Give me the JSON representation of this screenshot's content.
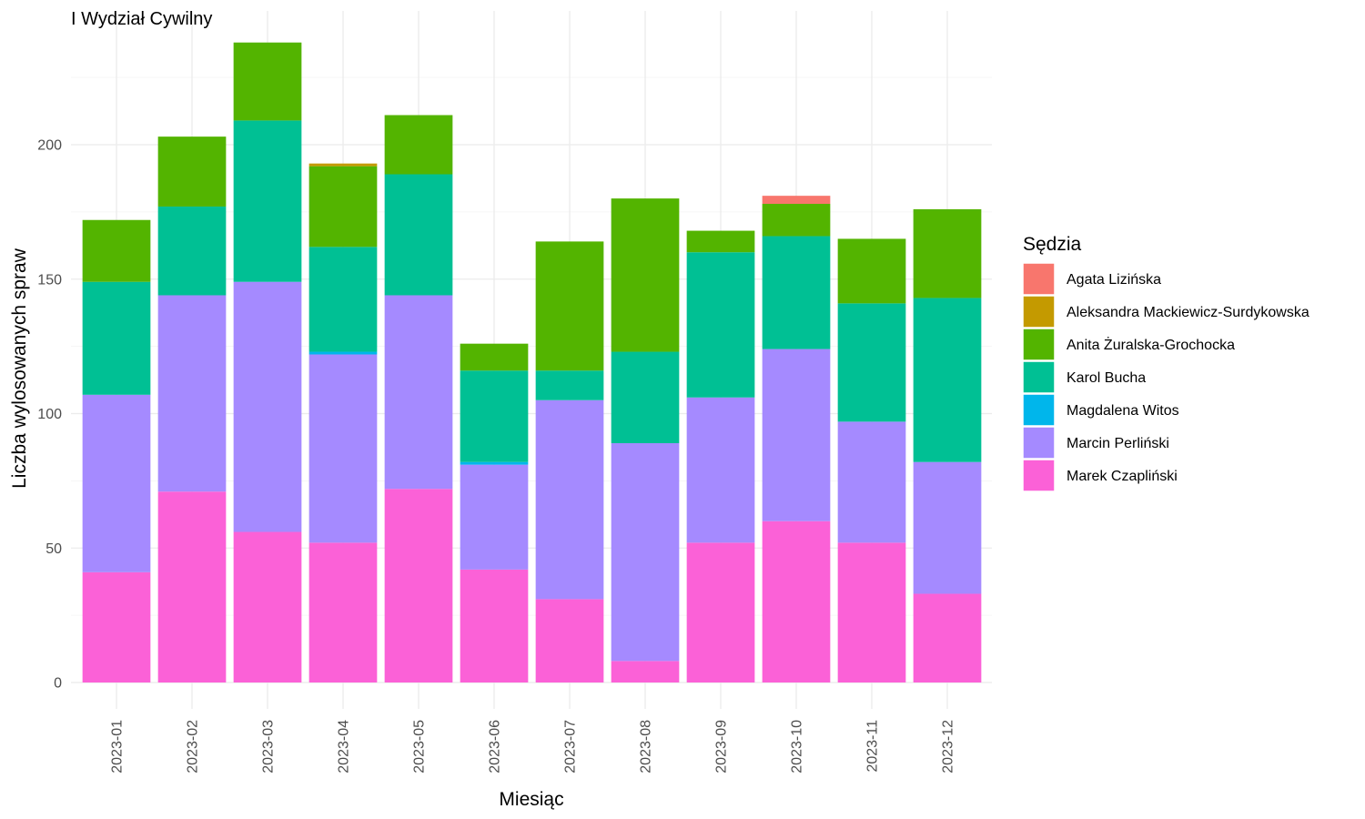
{
  "chart_data": {
    "type": "bar",
    "stacked": true,
    "title": "I Wydział Cywilny",
    "xlabel": "Miesiąc",
    "ylabel": "Liczba wylosowanych spraw",
    "ylim": [
      0,
      240
    ],
    "yticks": [
      0,
      50,
      100,
      150,
      200
    ],
    "grid": true,
    "legend_title": "Sędzia",
    "legend_position": "right",
    "categories": [
      "2023-01",
      "2023-02",
      "2023-03",
      "2023-04",
      "2023-05",
      "2023-06",
      "2023-07",
      "2023-08",
      "2023-09",
      "2023-10",
      "2023-11",
      "2023-12"
    ],
    "series": [
      {
        "name": "Agata Lizińska",
        "color": "#F8766D",
        "values": [
          0,
          0,
          0,
          0,
          0,
          0,
          0,
          0,
          0,
          3,
          0,
          0
        ]
      },
      {
        "name": "Aleksandra Mackiewicz-Surdykowska",
        "color": "#C49A00",
        "values": [
          0,
          0,
          0,
          1,
          0,
          0,
          0,
          0,
          0,
          0,
          0,
          0
        ]
      },
      {
        "name": "Anita Żuralska-Grochocka",
        "color": "#53B400",
        "values": [
          23,
          26,
          29,
          30,
          22,
          10,
          48,
          57,
          8,
          12,
          24,
          33
        ]
      },
      {
        "name": "Karol Bucha",
        "color": "#00C094",
        "values": [
          42,
          33,
          60,
          39,
          45,
          34,
          11,
          34,
          54,
          42,
          44,
          61
        ]
      },
      {
        "name": "Magdalena Witos",
        "color": "#00B6EB",
        "values": [
          0,
          0,
          0,
          1,
          0,
          1,
          0,
          0,
          0,
          0,
          0,
          0
        ]
      },
      {
        "name": "Marcin Perliński",
        "color": "#A58AFF",
        "values": [
          66,
          73,
          93,
          70,
          72,
          39,
          74,
          81,
          54,
          64,
          45,
          49
        ]
      },
      {
        "name": "Marek Czapliński",
        "color": "#FB61D7",
        "values": [
          41,
          71,
          56,
          52,
          72,
          42,
          31,
          8,
          52,
          60,
          52,
          33
        ]
      }
    ]
  }
}
